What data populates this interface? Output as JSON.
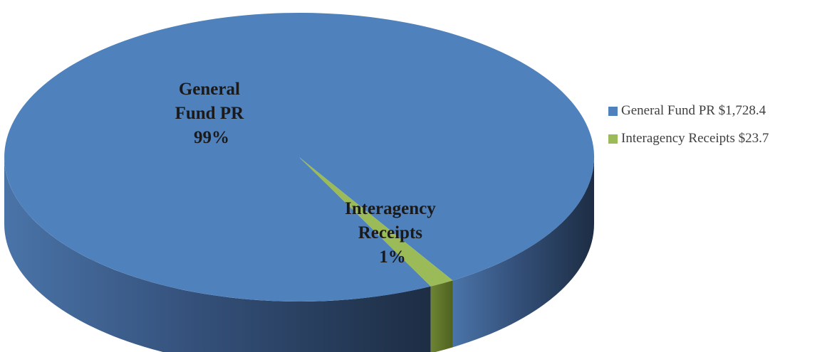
{
  "chart_data": {
    "type": "pie",
    "style": "3d",
    "slices": [
      {
        "label_lines": [
          "General",
          "Fund PR",
          "99%"
        ],
        "percent": 99,
        "legend": "General Fund PR $1,728.4",
        "value": 1728.4,
        "color": "#4f81bd"
      },
      {
        "label_lines": [
          "Interagency",
          "Receipts",
          "1%"
        ],
        "percent": 1,
        "legend": "Interagency Receipts $23.7",
        "value": 23.7,
        "color": "#9bbb59"
      }
    ],
    "legend_position": "right"
  }
}
